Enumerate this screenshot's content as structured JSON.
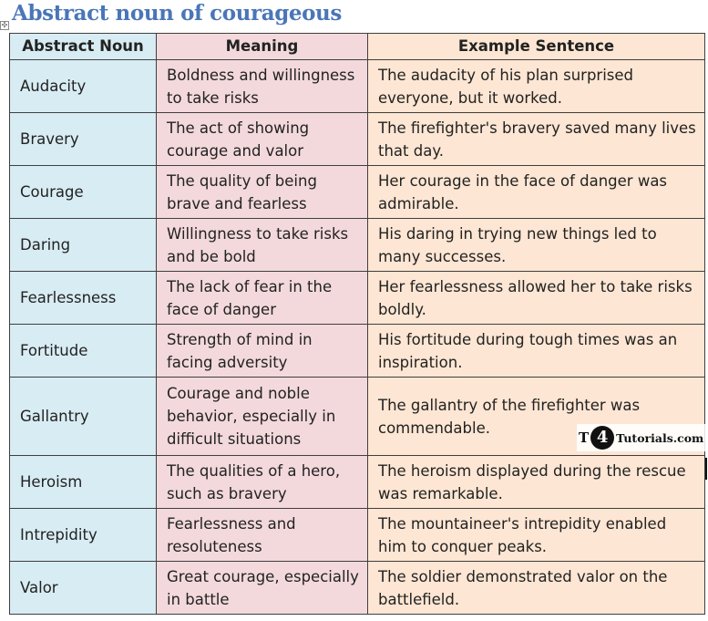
{
  "title": "Abstract noun of courageous",
  "table": {
    "headers": [
      "Abstract Noun",
      "Meaning",
      "Example Sentence"
    ],
    "rows": [
      {
        "noun": "Audacity",
        "meaning": "Boldness and willingness to take risks",
        "example": "The audacity of his plan surprised everyone, but it worked."
      },
      {
        "noun": "Bravery",
        "meaning": "The act of showing courage and valor",
        "example": "The firefighter's bravery saved many lives that day."
      },
      {
        "noun": "Courage",
        "meaning": "The quality of being brave and fearless",
        "example": "Her courage in the face of danger was admirable."
      },
      {
        "noun": "Daring",
        "meaning": "Willingness to take risks and be bold",
        "example": "His daring in trying new things led to many successes."
      },
      {
        "noun": "Fearlessness",
        "meaning": "The lack of fear in the face of danger",
        "example": "Her fearlessness allowed her to take risks boldly."
      },
      {
        "noun": "Fortitude",
        "meaning": "Strength of mind in facing adversity",
        "example": "His fortitude during tough times was an inspiration."
      },
      {
        "noun": "Gallantry",
        "meaning": "Courage and noble behavior, especially in difficult situations",
        "example": "The gallantry of the firefighter was commendable."
      },
      {
        "noun": "Heroism",
        "meaning": "The qualities of a hero, such as bravery",
        "example": "The heroism displayed during the rescue was remarkable."
      },
      {
        "noun": "Intrepidity",
        "meaning": "Fearlessness and resoluteness",
        "example": "The mountaineer's intrepidity enabled him to conquer peaks."
      },
      {
        "noun": "Valor",
        "meaning": "Great courage, especially in battle",
        "example": "The soldier demonstrated valor on the battlefield."
      }
    ]
  },
  "watermark": {
    "t": "T",
    "num": "4",
    "text": "Tutorials.com"
  },
  "colors": {
    "title": "#4a76b8",
    "noun_col": "#d8ecf3",
    "meaning_col": "#f3d9dc",
    "example_col": "#fde6d3"
  }
}
